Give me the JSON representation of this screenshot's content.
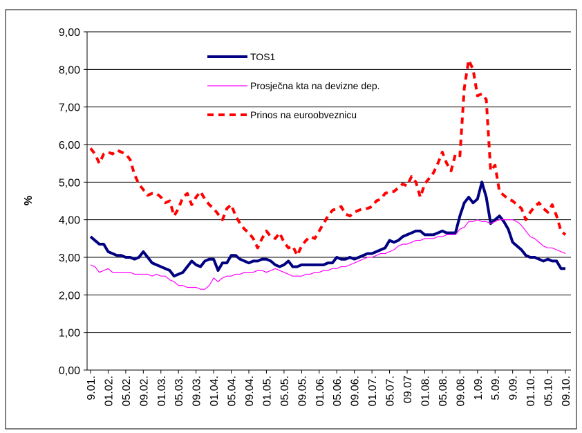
{
  "chart_data": {
    "type": "line",
    "y_label": "%",
    "categories": [
      "9.01.",
      null,
      null,
      null,
      "01.02.",
      null,
      null,
      null,
      "05.02.",
      null,
      null,
      null,
      "09.02.",
      null,
      null,
      null,
      "01.03.",
      null,
      null,
      null,
      "05.03.",
      null,
      null,
      null,
      "09.03.",
      null,
      null,
      null,
      "01.04.",
      null,
      null,
      null,
      "05.04.",
      null,
      null,
      null,
      "09.04.",
      null,
      null,
      null,
      "01.05.",
      null,
      null,
      null,
      "05.05.",
      null,
      null,
      null,
      "09.05.",
      null,
      null,
      null,
      "01.06.",
      null,
      null,
      null,
      "05.06.",
      null,
      null,
      null,
      "09.06.",
      null,
      null,
      null,
      "01.07.",
      null,
      null,
      null,
      "05.07.",
      null,
      null,
      null,
      "09.07",
      null,
      null,
      null,
      "01.08.",
      null,
      null,
      null,
      "05.08.",
      null,
      null,
      null,
      "09.08.",
      null,
      null,
      null,
      "1.09.",
      null,
      null,
      null,
      "5.09.",
      null,
      null,
      null,
      "9.09.",
      null,
      null,
      null,
      "01.10.",
      null,
      null,
      null,
      "05.10.",
      null,
      null,
      null,
      "09.10."
    ],
    "series": [
      {
        "name": "TOS1",
        "color": "#000080",
        "dashed": false,
        "values": [
          3.55,
          3.45,
          3.35,
          3.35,
          3.15,
          3.1,
          3.05,
          3.05,
          3.0,
          3.0,
          2.95,
          3.0,
          3.15,
          3.0,
          2.85,
          2.8,
          2.75,
          2.7,
          2.65,
          2.5,
          2.55,
          2.6,
          2.75,
          2.9,
          2.8,
          2.75,
          2.9,
          2.95,
          2.95,
          2.65,
          2.85,
          2.85,
          3.05,
          3.05,
          2.95,
          2.9,
          2.85,
          2.9,
          2.9,
          2.95,
          2.95,
          2.9,
          2.8,
          2.75,
          2.8,
          2.9,
          2.75,
          2.75,
          2.8,
          2.8,
          2.8,
          2.8,
          2.8,
          2.8,
          2.85,
          2.85,
          3.0,
          2.95,
          2.95,
          3.0,
          2.95,
          3.0,
          3.05,
          3.1,
          3.1,
          3.15,
          3.2,
          3.25,
          3.45,
          3.4,
          3.45,
          3.55,
          3.6,
          3.65,
          3.7,
          3.7,
          3.6,
          3.6,
          3.6,
          3.65,
          3.7,
          3.65,
          3.65,
          3.65,
          4.1,
          4.45,
          4.6,
          4.45,
          4.55,
          5.0,
          4.6,
          3.9,
          4.0,
          4.1,
          3.95,
          3.75,
          3.4,
          3.3,
          3.2,
          3.05,
          3.0,
          3.0,
          2.95,
          2.9,
          2.95,
          2.9,
          2.9,
          2.7,
          2.7
        ]
      },
      {
        "name": "Prosječna kta na devizne dep.",
        "color": "#ff00ff",
        "dashed": false,
        "values": [
          2.8,
          2.75,
          2.6,
          2.65,
          2.7,
          2.6,
          2.6,
          2.6,
          2.6,
          2.6,
          2.55,
          2.55,
          2.55,
          2.55,
          2.5,
          2.55,
          2.5,
          2.5,
          2.4,
          2.35,
          2.25,
          2.25,
          2.2,
          2.2,
          2.2,
          2.15,
          2.15,
          2.25,
          2.45,
          2.35,
          2.45,
          2.5,
          2.5,
          2.55,
          2.55,
          2.6,
          2.6,
          2.6,
          2.65,
          2.65,
          2.6,
          2.65,
          2.7,
          2.65,
          2.6,
          2.55,
          2.5,
          2.5,
          2.5,
          2.55,
          2.55,
          2.6,
          2.6,
          2.65,
          2.65,
          2.7,
          2.7,
          2.75,
          2.75,
          2.8,
          2.85,
          2.9,
          2.95,
          3.0,
          3.0,
          3.05,
          3.1,
          3.1,
          3.15,
          3.2,
          3.3,
          3.35,
          3.35,
          3.4,
          3.45,
          3.45,
          3.5,
          3.5,
          3.5,
          3.55,
          3.55,
          3.6,
          3.6,
          3.6,
          3.75,
          3.8,
          3.95,
          3.95,
          4.0,
          3.95,
          3.95,
          3.9,
          3.95,
          4.0,
          4.0,
          4.0,
          4.0,
          3.95,
          3.85,
          3.7,
          3.55,
          3.5,
          3.4,
          3.3,
          3.25,
          3.25,
          3.2,
          3.15,
          3.1
        ]
      },
      {
        "name": "Prinos na euroobveznicu",
        "color": "#ff0000",
        "dashed": true,
        "values": [
          5.9,
          5.75,
          5.5,
          5.75,
          5.8,
          5.75,
          5.85,
          5.8,
          5.75,
          5.6,
          5.2,
          4.95,
          4.8,
          4.65,
          4.7,
          4.7,
          4.6,
          4.45,
          4.5,
          4.1,
          4.3,
          4.6,
          4.7,
          4.4,
          4.6,
          4.75,
          4.55,
          4.4,
          4.3,
          4.15,
          4.0,
          4.3,
          4.4,
          4.1,
          3.9,
          3.75,
          3.65,
          3.5,
          3.25,
          3.5,
          3.7,
          3.55,
          3.5,
          3.65,
          3.4,
          3.25,
          3.3,
          3.05,
          3.3,
          3.45,
          3.55,
          3.5,
          3.7,
          3.9,
          4.1,
          4.25,
          4.3,
          4.35,
          4.15,
          4.1,
          4.2,
          4.25,
          4.3,
          4.3,
          4.35,
          4.5,
          4.55,
          4.7,
          4.75,
          4.75,
          4.85,
          4.95,
          4.9,
          5.15,
          5.0,
          4.6,
          4.95,
          5.1,
          5.25,
          5.5,
          5.8,
          5.5,
          5.3,
          5.75,
          5.7,
          7.5,
          8.25,
          8.0,
          7.3,
          7.35,
          7.2,
          5.3,
          5.45,
          4.75,
          4.65,
          4.55,
          4.5,
          4.4,
          4.3,
          4.0,
          4.2,
          4.35,
          4.45,
          4.3,
          4.2,
          4.4,
          4.1,
          3.7,
          3.6
        ]
      }
    ],
    "ylim": [
      0,
      9
    ],
    "yticks": [
      {
        "value": 0,
        "label": "0,00"
      },
      {
        "value": 1,
        "label": "1,00"
      },
      {
        "value": 2,
        "label": "2,00"
      },
      {
        "value": 3,
        "label": "3,00"
      },
      {
        "value": 4,
        "label": "4,00"
      },
      {
        "value": 5,
        "label": "5,00"
      },
      {
        "value": 6,
        "label": "6,00"
      },
      {
        "value": 7,
        "label": "7,00"
      },
      {
        "value": 8,
        "label": "8,00"
      },
      {
        "value": 9,
        "label": "9,00"
      }
    ],
    "grid": true,
    "legend": "upper left"
  }
}
